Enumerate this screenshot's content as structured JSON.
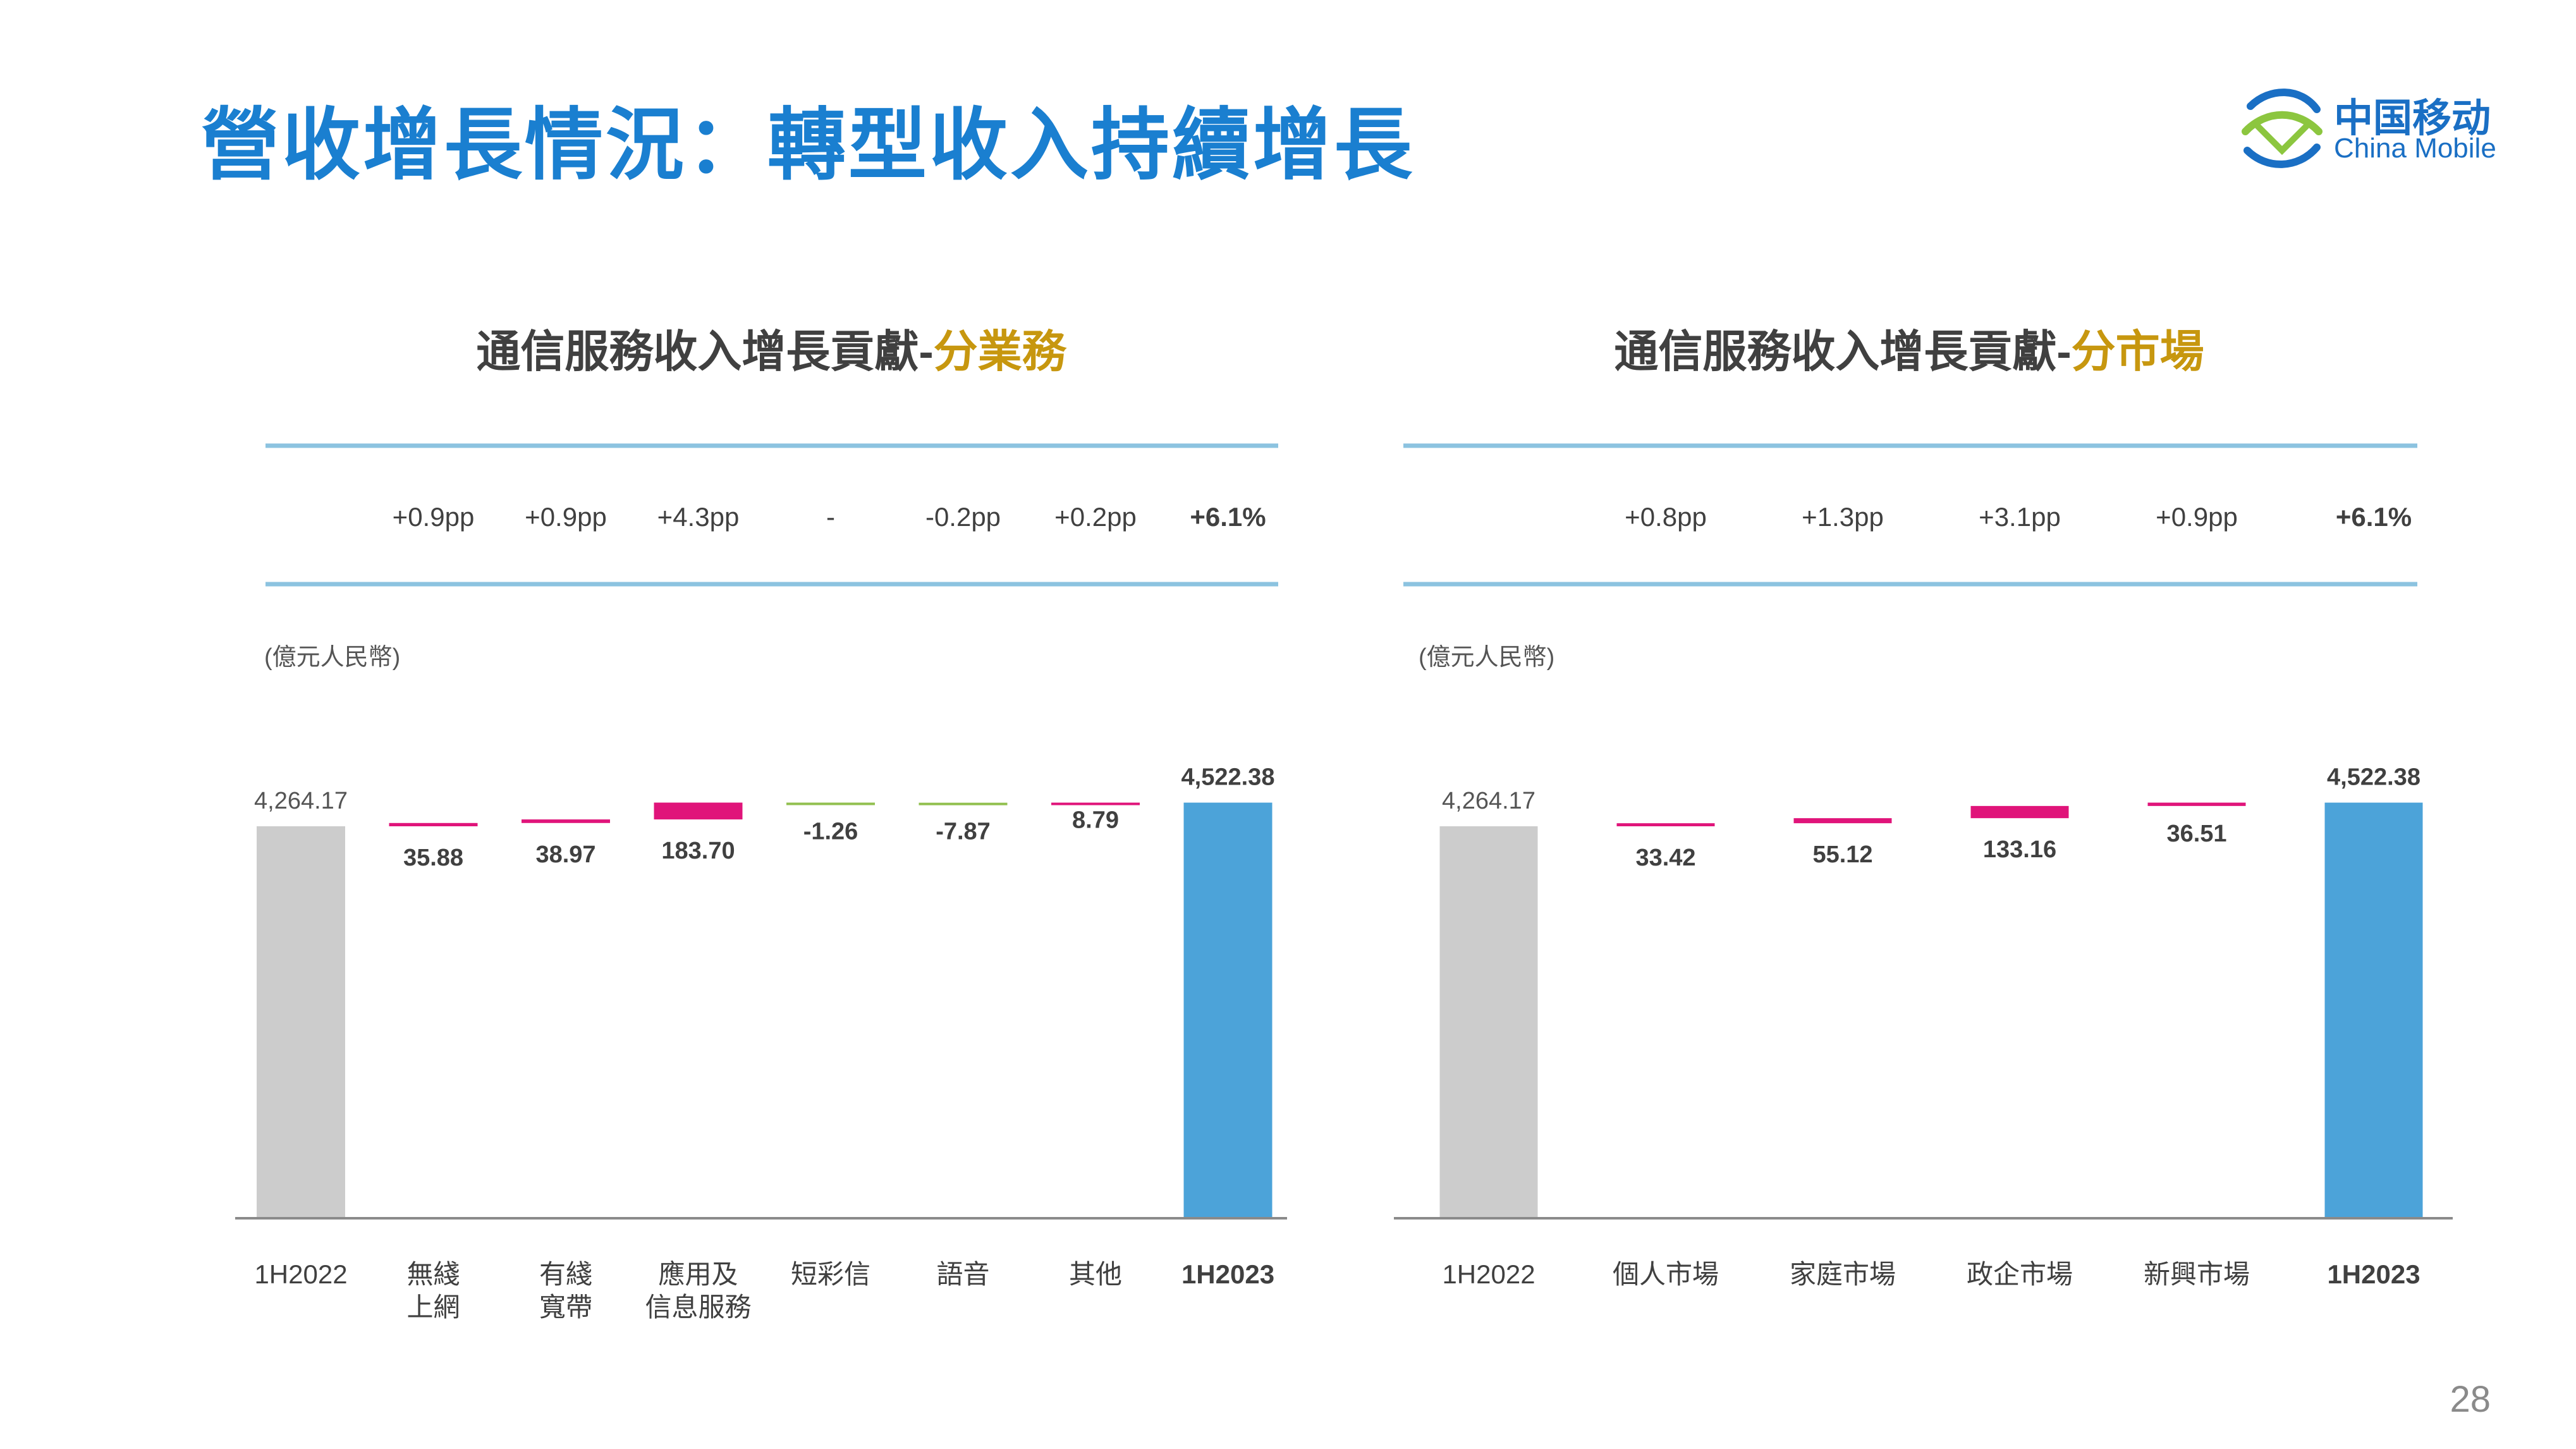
{
  "slide": {
    "title": "營收增長情況：轉型收入持續增長",
    "page_number": "28",
    "logo": {
      "cn": "中国移动",
      "en": "China Mobile"
    }
  },
  "colors": {
    "title_blue": "#1a7fd0",
    "start_bar": "#cccccc",
    "end_bar": "#4ca3d9",
    "increase": "#e0147a",
    "decrease": "#92c050",
    "divider": "#8cc3e0",
    "accent_gold": "#c7970f"
  },
  "chart_data": [
    {
      "type": "bar",
      "subtype": "waterfall",
      "title_main": "通信服務收入增長貢獻",
      "title_accent": "分業務",
      "unit_label": "(億元人民幣)",
      "categories": [
        "1H2022",
        "無綫\n上網",
        "有綫\n寬帶",
        "應用及\n信息服務",
        "短彩信",
        "語音",
        "其他",
        "1H2023"
      ],
      "values": [
        4264.17,
        35.88,
        38.97,
        183.7,
        -1.26,
        -7.87,
        8.79,
        4522.38
      ],
      "value_labels": [
        "4,264.17",
        "35.88",
        "38.97",
        "183.70",
        "-1.26",
        "-7.87",
        "8.79",
        "4,522.38"
      ],
      "contributions": [
        "",
        "+0.9pp",
        "+0.9pp",
        "+4.3pp",
        "-",
        "-0.2pp",
        "+0.2pp",
        "+6.1%"
      ],
      "grid": false
    },
    {
      "type": "bar",
      "subtype": "waterfall",
      "title_main": "通信服務收入增長貢獻",
      "title_accent": "分市場",
      "unit_label": "(億元人民幣)",
      "categories": [
        "1H2022",
        "個人市場",
        "家庭市場",
        "政企市場",
        "新興市場",
        "1H2023"
      ],
      "values": [
        4264.17,
        33.42,
        55.12,
        133.16,
        36.51,
        4522.38
      ],
      "value_labels": [
        "4,264.17",
        "33.42",
        "55.12",
        "133.16",
        "36.51",
        "4,522.38"
      ],
      "contributions": [
        "",
        "+0.8pp",
        "+1.3pp",
        "+3.1pp",
        "+0.9pp",
        "+6.1%"
      ],
      "grid": false
    }
  ]
}
